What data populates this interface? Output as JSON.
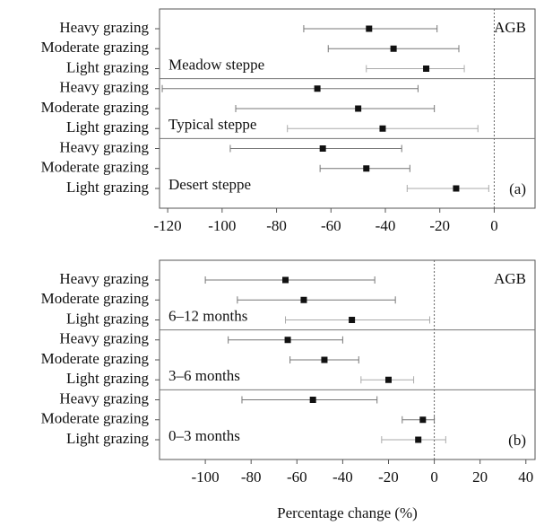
{
  "chart_data": [
    {
      "type": "forest",
      "annotation": "AGB",
      "panel_label": "(a)",
      "xlim": [
        -123,
        15
      ],
      "xticks": [
        -120,
        -100,
        -80,
        -60,
        -40,
        -20,
        0
      ],
      "reference_line": 0,
      "groups": [
        {
          "name": "Meadow steppe",
          "categories": [
            "Heavy grazing",
            "Moderate grazing",
            "Light grazing"
          ],
          "values": [
            -46,
            -37,
            -25
          ],
          "lower": [
            -70,
            -61,
            -47
          ],
          "upper": [
            -21,
            -13,
            -11
          ]
        },
        {
          "name": "Typical steppe",
          "categories": [
            "Heavy grazing",
            "Moderate grazing",
            "Light grazing"
          ],
          "values": [
            -65,
            -50,
            -41
          ],
          "lower": [
            -122,
            -95,
            -76
          ],
          "upper": [
            -28,
            -22,
            -6
          ]
        },
        {
          "name": "Desert steppe",
          "categories": [
            "Heavy grazing",
            "Moderate grazing",
            "Light grazing"
          ],
          "values": [
            -63,
            -47,
            -14
          ],
          "lower": [
            -97,
            -64,
            -32
          ],
          "upper": [
            -34,
            -31,
            -2
          ]
        }
      ]
    },
    {
      "type": "forest",
      "annotation": "AGB",
      "panel_label": "(b)",
      "xlabel": "Percentage change (%)",
      "xlim": [
        -120,
        44
      ],
      "xticks": [
        -100,
        -80,
        -60,
        -40,
        -20,
        0,
        20,
        40
      ],
      "reference_line": 0,
      "groups": [
        {
          "name": "6–12 months",
          "categories": [
            "Heavy grazing",
            "Moderate grazing",
            "Light grazing"
          ],
          "values": [
            -65,
            -57,
            -36
          ],
          "lower": [
            -100,
            -86,
            -65
          ],
          "upper": [
            -26,
            -17,
            -2
          ]
        },
        {
          "name": "3–6 months",
          "categories": [
            "Heavy grazing",
            "Moderate grazing",
            "Light grazing"
          ],
          "values": [
            -64,
            -48,
            -20
          ],
          "lower": [
            -90,
            -63,
            -32
          ],
          "upper": [
            -40,
            -33,
            -9
          ]
        },
        {
          "name": "0–3 months",
          "categories": [
            "Heavy grazing",
            "Moderate grazing",
            "Light grazing"
          ],
          "values": [
            -53,
            -5,
            -7
          ],
          "lower": [
            -84,
            -14,
            -23
          ],
          "upper": [
            -25,
            0,
            5
          ]
        }
      ]
    }
  ]
}
